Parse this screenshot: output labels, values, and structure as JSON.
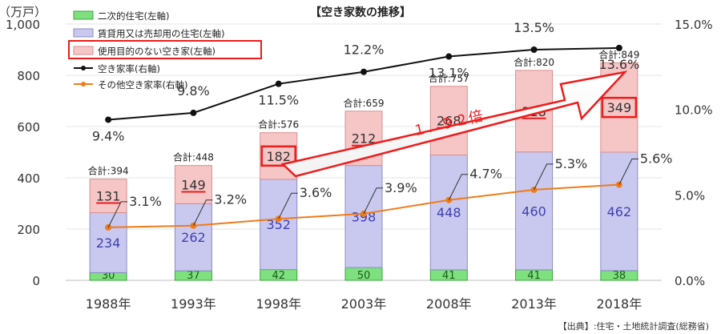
{
  "chart_data": {
    "type": "bar",
    "title": "【空き家数の推移】",
    "left_unit": "（万戸）",
    "categories": [
      "1988年",
      "1993年",
      "1998年",
      "2003年",
      "2008年",
      "2013年",
      "2018年"
    ],
    "ylim_left": [
      0,
      1000
    ],
    "yticks_left": [
      "0",
      "200",
      "400",
      "600",
      "800",
      "1,000"
    ],
    "ylim_right": [
      0,
      15
    ],
    "yticks_right": [
      "0.0%",
      "5.0%",
      "10.0%",
      "15.0%"
    ],
    "bar_series": [
      {
        "name": "二次的住宅(左軸)",
        "values": [
          30,
          37,
          42,
          50,
          41,
          41,
          38
        ],
        "fill": "#7ee07e",
        "stroke": "#3da53d"
      },
      {
        "name": "賃貸用又は売却用の住宅(左軸)",
        "values": [
          234,
          262,
          352,
          398,
          448,
          460,
          462
        ],
        "fill": "#c9c9ef",
        "stroke": "#8c8cc8"
      },
      {
        "name": "使用目的のない空き家(左軸)",
        "values": [
          131,
          149,
          182,
          212,
          268,
          318,
          349
        ],
        "fill": "#f6c6c6",
        "stroke": "#d88f8f"
      }
    ],
    "totals_prefix": "合計:",
    "totals": [
      394,
      448,
      576,
      659,
      757,
      820,
      849
    ],
    "line_series": [
      {
        "name": "空き家率(右軸)",
        "values": [
          9.4,
          9.8,
          11.5,
          12.2,
          13.1,
          13.5,
          13.6
        ],
        "labels": [
          "9.4%",
          "9.8%",
          "11.5%",
          "12.2%",
          "13.1%",
          "13.5%",
          "13.6%"
        ],
        "color": "#111111"
      },
      {
        "name": "その他空き家率(右軸)",
        "values": [
          3.1,
          3.2,
          3.6,
          3.9,
          4.7,
          5.3,
          5.6
        ],
        "labels": [
          "3.1%",
          "3.2%",
          "3.6%",
          "3.9%",
          "4.7%",
          "5.3%",
          "5.6%"
        ],
        "color": "#ef7b1a"
      }
    ],
    "arrow_label": "１．９２倍",
    "source": "【出典】:住宅・土地統計調査(総務省)",
    "colors": {
      "axis_text": "#333333",
      "grid": "#e4e4e4",
      "highlight": "#ee1c1c",
      "value_label": "#4040b0"
    }
  }
}
